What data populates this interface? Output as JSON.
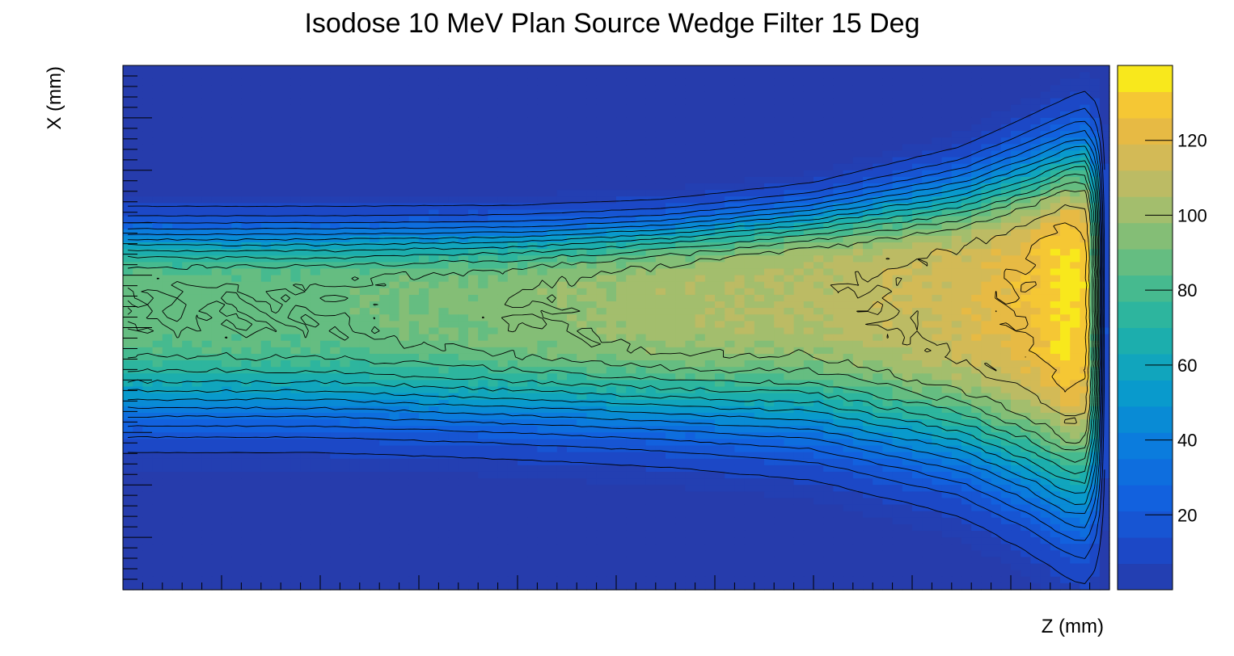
{
  "chart_data": {
    "type": "heatmap",
    "title": "Isodose 10 MeV Plan Source Wedge Filter 15 Deg",
    "xlabel": "Z (mm)",
    "ylabel": "X (mm)",
    "colorbar": {
      "range": [
        0,
        140
      ],
      "tick_values": [
        20,
        40,
        60,
        80,
        100,
        120
      ],
      "tick_labels": [
        "20",
        "40",
        "60",
        "80",
        "100",
        "120"
      ]
    },
    "x_tick_labels_shown": false,
    "y_tick_labels_shown": false,
    "contours": true,
    "palette": "kBird",
    "dose_profile": {
      "z_fraction": [
        0.0,
        0.2,
        0.4,
        0.55,
        0.7,
        0.85,
        0.92,
        0.96,
        0.975,
        1.0
      ],
      "peak_dose": [
        88,
        88,
        95,
        103,
        106,
        116,
        126,
        138,
        130,
        20
      ],
      "beam_center_x_fraction": [
        0.45,
        0.45,
        0.45,
        0.44,
        0.42,
        0.43,
        0.43,
        0.43,
        0.43,
        0.43
      ],
      "upper_edge_x_fraction": [
        0.28,
        0.28,
        0.28,
        0.27,
        0.24,
        0.18,
        0.13,
        0.1,
        0.09,
        0.09
      ],
      "lower_edge_x_fraction": [
        0.72,
        0.72,
        0.73,
        0.74,
        0.76,
        0.82,
        0.88,
        0.92,
        0.93,
        0.93
      ]
    }
  }
}
